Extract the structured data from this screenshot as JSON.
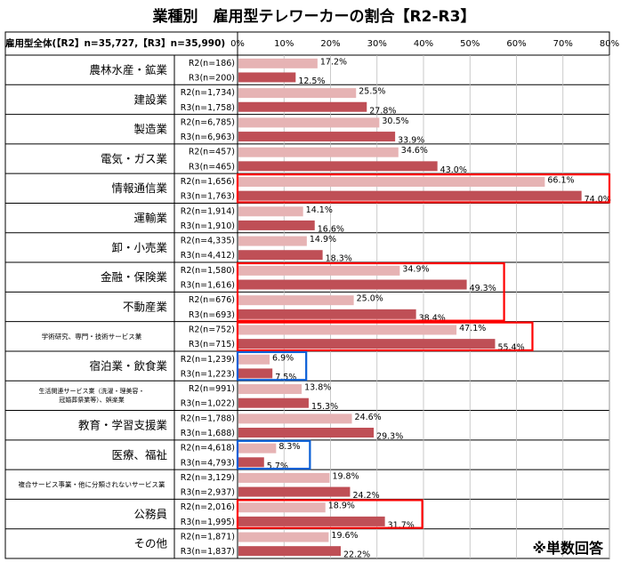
{
  "chart_data": {
    "type": "bar",
    "orientation": "horizontal",
    "title": "業種別　雇用型テレワーカーの割合【R2-R3】",
    "header_label": "雇用型全体(【R2】n=35,727,【R3】n=35,990)",
    "xlim": [
      0,
      80
    ],
    "x_ticks": [
      "0%",
      "10%",
      "20%",
      "30%",
      "40%",
      "50%",
      "60%",
      "70%",
      "80%"
    ],
    "grid": true,
    "note": "※単数回答",
    "colors": {
      "R2": "#e6b3b4",
      "R3": "#bf4f56",
      "highlight_red": "#ff0000",
      "highlight_blue": "#0a5fd6"
    },
    "categories": [
      {
        "name": "農林水産・鉱業",
        "small": false,
        "rows": [
          {
            "label": "R2(n=186)",
            "value": 17.2,
            "text": "17.2%"
          },
          {
            "label": "R3(n=200)",
            "value": 12.5,
            "text": "12.5%"
          }
        ]
      },
      {
        "name": "建設業",
        "small": false,
        "rows": [
          {
            "label": "R2(n=1,734)",
            "value": 25.5,
            "text": "25.5%"
          },
          {
            "label": "R3(n=1,758)",
            "value": 27.8,
            "text": "27.8%"
          }
        ]
      },
      {
        "name": "製造業",
        "small": false,
        "rows": [
          {
            "label": "R2(n=6,785)",
            "value": 30.5,
            "text": "30.5%"
          },
          {
            "label": "R3(n=6,963)",
            "value": 33.9,
            "text": "33.9%"
          }
        ]
      },
      {
        "name": "電気・ガス業",
        "small": false,
        "rows": [
          {
            "label": "R2(n=457)",
            "value": 34.6,
            "text": "34.6%"
          },
          {
            "label": "R3(n=465)",
            "value": 43.0,
            "text": "43.0%"
          }
        ]
      },
      {
        "name": "情報通信業",
        "small": false,
        "rows": [
          {
            "label": "R2(n=1,656)",
            "value": 66.1,
            "text": "66.1%"
          },
          {
            "label": "R3(n=1,763)",
            "value": 74.0,
            "text": "74.0%"
          }
        ]
      },
      {
        "name": "運輸業",
        "small": false,
        "rows": [
          {
            "label": "R2(n=1,914)",
            "value": 14.1,
            "text": "14.1%"
          },
          {
            "label": "R3(n=1,910)",
            "value": 16.6,
            "text": "16.6%"
          }
        ]
      },
      {
        "name": "卸・小売業",
        "small": false,
        "rows": [
          {
            "label": "R2(n=4,335)",
            "value": 14.9,
            "text": "14.9%"
          },
          {
            "label": "R3(n=4,412)",
            "value": 18.3,
            "text": "18.3%"
          }
        ]
      },
      {
        "name": "金融・保険業",
        "small": false,
        "rows": [
          {
            "label": "R2(n=1,580)",
            "value": 34.9,
            "text": "34.9%"
          },
          {
            "label": "R3(n=1,616)",
            "value": 49.3,
            "text": "49.3%"
          }
        ]
      },
      {
        "name": "不動産業",
        "small": false,
        "rows": [
          {
            "label": "R2(n=676)",
            "value": 25.0,
            "text": "25.0%"
          },
          {
            "label": "R3(n=693)",
            "value": 38.4,
            "text": "38.4%"
          }
        ]
      },
      {
        "name": "学術研究、専門・技術サービス業",
        "small": true,
        "rows": [
          {
            "label": "R2(n=752)",
            "value": 47.1,
            "text": "47.1%"
          },
          {
            "label": "R3(n=715)",
            "value": 55.4,
            "text": "55.4%"
          }
        ]
      },
      {
        "name": "宿泊業・飲食業",
        "small": false,
        "rows": [
          {
            "label": "R2(n=1,239)",
            "value": 6.9,
            "text": "6.9%"
          },
          {
            "label": "R3(n=1,223)",
            "value": 7.5,
            "text": "7.5%"
          }
        ]
      },
      {
        "name": "生活関連サービス業（洗濯・理美容・冠婚葬祭業等）、娯楽業",
        "name_lines": [
          "生活関連サービス業（洗濯・理美容・",
          "冠婚葬祭業等）、娯楽業"
        ],
        "small": true,
        "rows": [
          {
            "label": "R2(n=991)",
            "value": 13.8,
            "text": "13.8%"
          },
          {
            "label": "R3(n=1,022)",
            "value": 15.3,
            "text": "15.3%"
          }
        ]
      },
      {
        "name": "教育・学習支援業",
        "small": false,
        "rows": [
          {
            "label": "R2(n=1,788)",
            "value": 24.6,
            "text": "24.6%"
          },
          {
            "label": "R3(n=1,688)",
            "value": 29.3,
            "text": "29.3%"
          }
        ]
      },
      {
        "name": "医療、福祉",
        "small": false,
        "rows": [
          {
            "label": "R2(n=4,618)",
            "value": 8.3,
            "text": "8.3%"
          },
          {
            "label": "R3(n=4,793)",
            "value": 5.7,
            "text": "5.7%"
          }
        ]
      },
      {
        "name": "複合サービス事業・他に分類されないサービス業",
        "small": true,
        "rows": [
          {
            "label": "R2(n=3,129)",
            "value": 19.8,
            "text": "19.8%"
          },
          {
            "label": "R3(n=2,937)",
            "value": 24.2,
            "text": "24.2%"
          }
        ]
      },
      {
        "name": "公務員",
        "small": false,
        "rows": [
          {
            "label": "R2(n=2,016)",
            "value": 18.9,
            "text": "18.9%"
          },
          {
            "label": "R3(n=1,995)",
            "value": 31.7,
            "text": "31.7%"
          }
        ]
      },
      {
        "name": "その他",
        "small": false,
        "rows": [
          {
            "label": "R2(n=1,871)",
            "value": 19.6,
            "text": "19.6%"
          },
          {
            "label": "R3(n=1,837)",
            "value": 22.2,
            "text": "22.2%"
          }
        ]
      }
    ],
    "highlights": [
      {
        "color": "red",
        "from": 4,
        "to": 4
      },
      {
        "color": "red",
        "from": 7,
        "to": 8
      },
      {
        "color": "red",
        "from": 9,
        "to": 9
      },
      {
        "color": "blue",
        "from": 10,
        "to": 10
      },
      {
        "color": "blue",
        "from": 13,
        "to": 13
      },
      {
        "color": "red",
        "from": 15,
        "to": 15
      }
    ]
  }
}
